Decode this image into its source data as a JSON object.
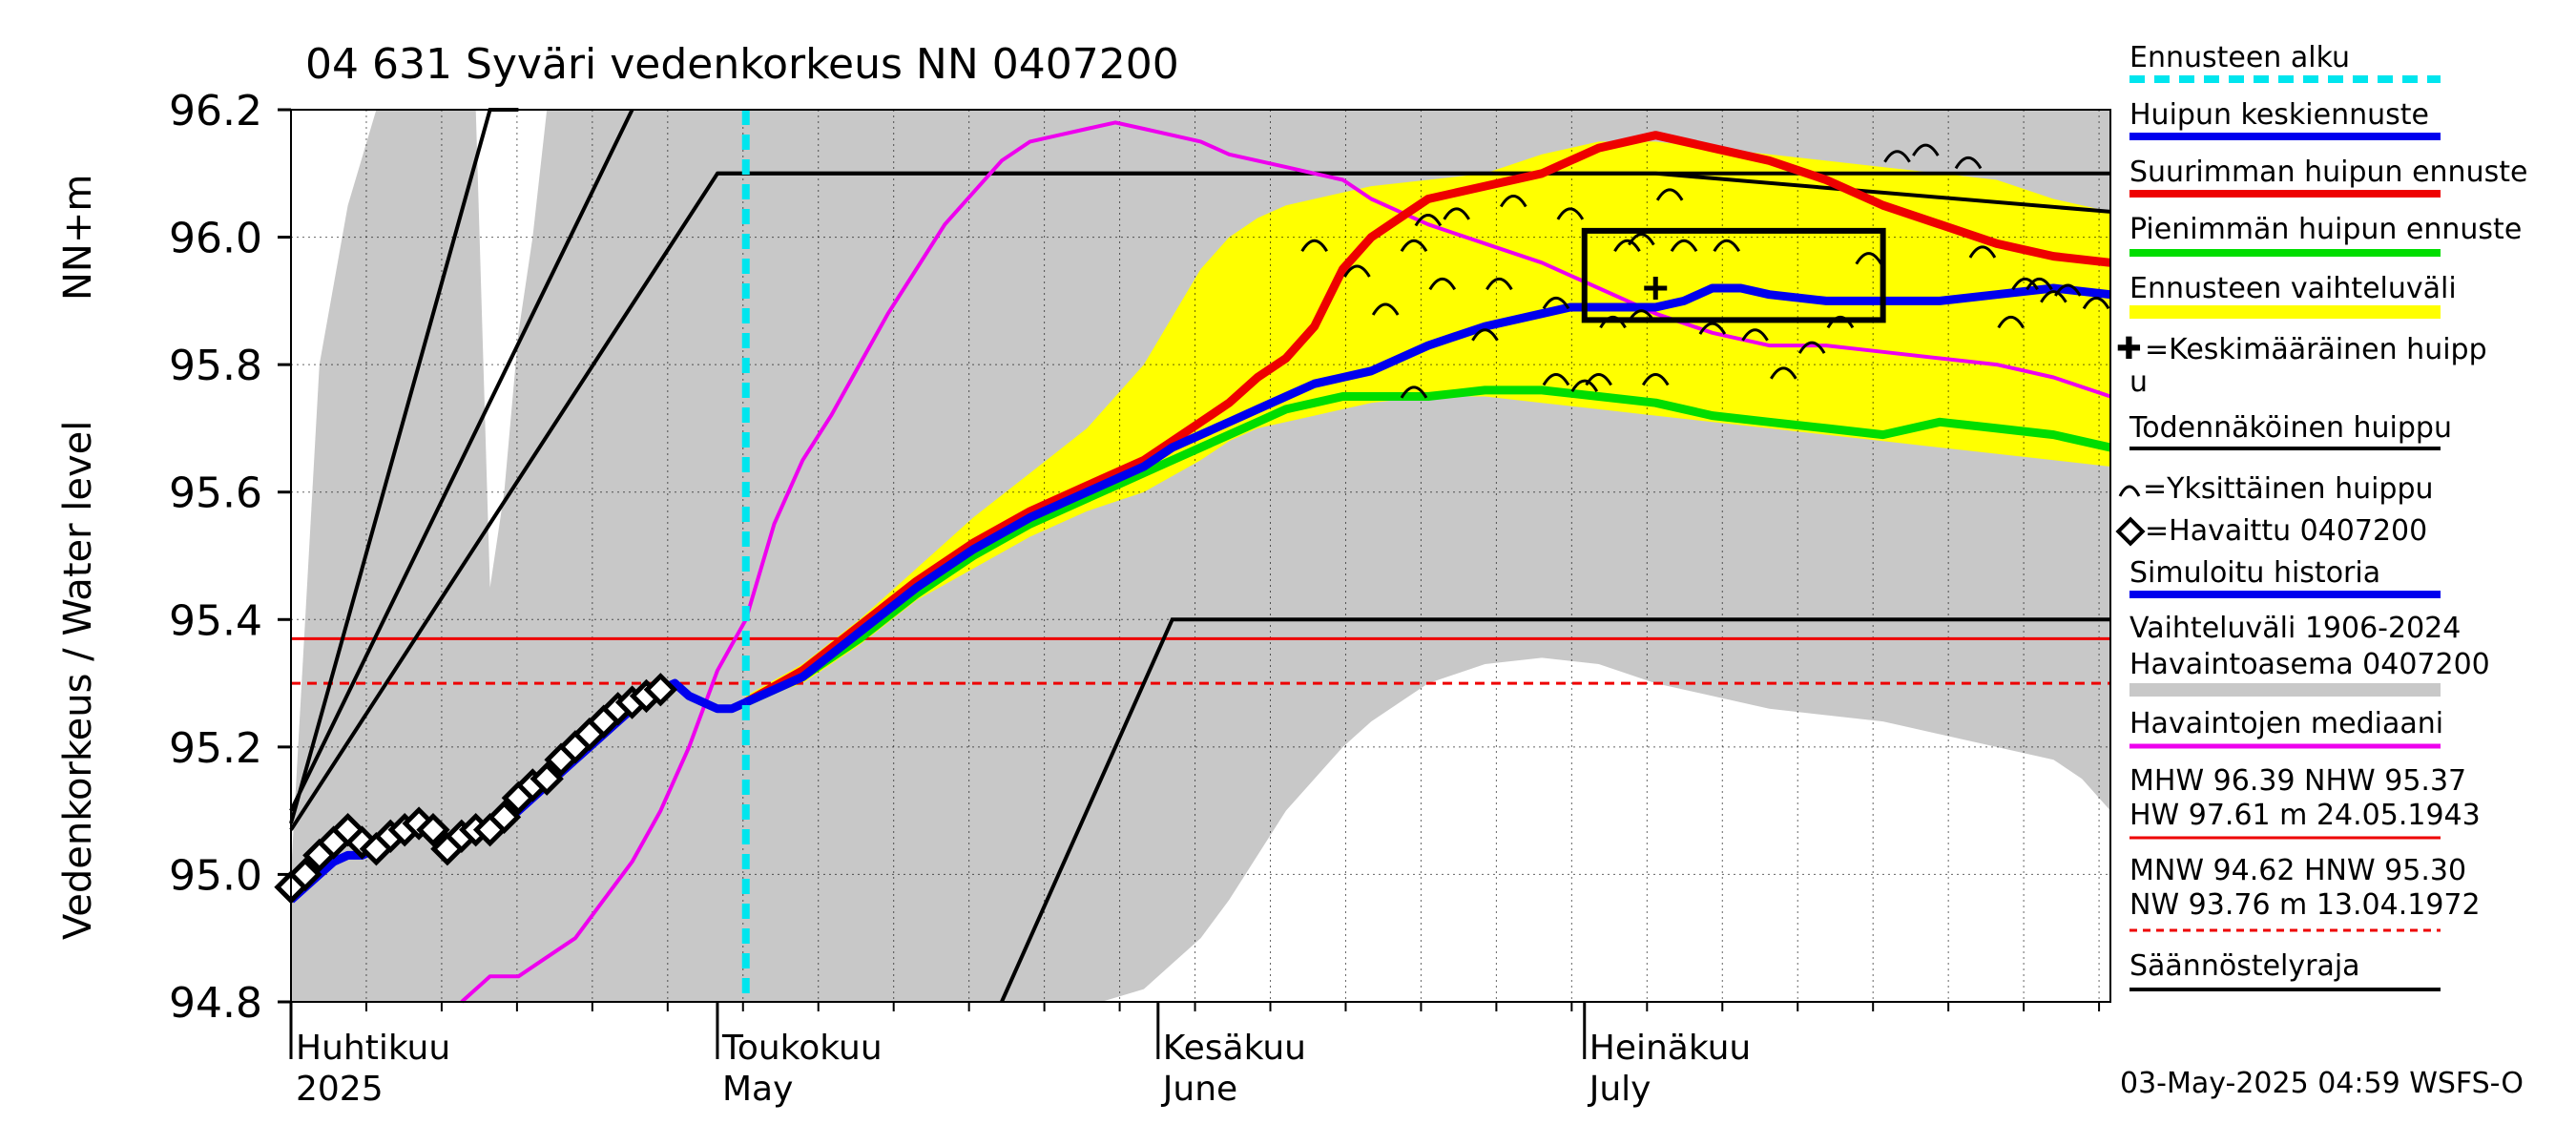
{
  "chart_data": {
    "type": "line",
    "title": "04 631 Syväri vedenkorkeus NN 0407200",
    "ylabel": "Vedenkorkeus / Water level",
    "yunit": "NN+m",
    "ylim": [
      94.8,
      96.2
    ],
    "xlim": [
      0,
      128
    ],
    "grid": true,
    "yticks": [
      94.8,
      95.0,
      95.2,
      95.4,
      95.6,
      95.8,
      96.0,
      96.2
    ],
    "ytick_labels": [
      "94.8",
      "95.0",
      "95.2",
      "95.4",
      "95.6",
      "95.8",
      "96.0",
      "96.2"
    ],
    "month_ticks": [
      {
        "day": 0,
        "label_fi": "Huhtikuu",
        "label_en": "2025"
      },
      {
        "day": 30,
        "label_fi": "Toukokuu",
        "label_en": "May"
      },
      {
        "day": 61,
        "label_fi": "Kesäkuu",
        "label_en": "June"
      },
      {
        "day": 91,
        "label_fi": "Heinäkuu",
        "label_en": "July"
      }
    ],
    "forecast_start_day": 32,
    "hlines": [
      {
        "name": "HNW",
        "value": 95.37,
        "style": "solid",
        "color": "#ee0000"
      },
      {
        "name": "HNW2",
        "value": 95.3,
        "style": "dashed",
        "color": "#ee0000"
      }
    ],
    "history_band": {
      "name": "Vaihteluväli 1906-2024 Havaintoasema 0407200",
      "x": [
        0,
        3,
        6,
        10,
        13,
        15,
        17,
        19,
        21,
        23,
        25,
        27,
        30,
        40,
        50,
        55,
        58,
        60,
        63,
        66,
        68,
        72,
        76,
        80,
        84,
        88,
        92,
        96,
        100,
        104,
        108,
        112,
        116,
        120,
        124,
        128
      ],
      "upper": [
        95.0,
        96.2,
        96.2,
        96.2,
        96.2,
        96.2,
        96.2,
        96.2,
        96.2,
        96.2,
        96.2,
        96.2,
        96.2,
        96.2,
        96.2,
        96.2,
        96.2,
        96.2,
        96.2,
        96.2,
        96.2,
        96.2,
        96.2,
        96.2,
        96.2,
        96.2,
        96.2,
        96.2,
        96.2,
        96.2,
        96.2,
        96.2,
        96.2,
        96.2,
        96.2,
        96.2
      ],
      "lower": [
        94.8,
        94.8,
        94.8,
        94.8,
        94.8,
        94.8,
        94.8,
        94.8,
        94.8,
        94.8,
        94.8,
        94.8,
        94.8,
        94.8,
        94.8,
        94.8,
        94.8,
        94.8,
        94.8,
        94.8,
        94.8,
        94.8,
        94.8,
        94.8,
        94.8,
        94.8,
        94.8,
        94.8,
        94.8,
        94.8,
        94.8,
        94.8,
        94.8,
        94.8,
        94.8,
        94.8
      ]
    },
    "history_white_upper": {
      "x": [
        0,
        2,
        4,
        6,
        8,
        10,
        12,
        13,
        14,
        15,
        16,
        17,
        18,
        20,
        22,
        24,
        26,
        28,
        30
      ],
      "y": [
        95.43,
        95.8,
        96.05,
        96.2,
        96.2,
        96.2,
        96.2,
        96.2,
        95.45,
        95.6,
        95.85,
        96.0,
        96.2,
        96.2,
        96.2,
        96.2,
        96.2,
        96.2,
        96.2
      ]
    },
    "history_white_lower": {
      "x": [
        57,
        60,
        62,
        64,
        66,
        68,
        70,
        72,
        74,
        76,
        80,
        84,
        88,
        92,
        96,
        100,
        104,
        108,
        112,
        116,
        120,
        124,
        126,
        128
      ],
      "y": [
        94.8,
        94.82,
        94.86,
        94.9,
        94.96,
        95.03,
        95.1,
        95.15,
        95.2,
        95.24,
        95.3,
        95.33,
        95.34,
        95.33,
        95.3,
        95.28,
        95.26,
        95.25,
        95.24,
        95.22,
        95.2,
        95.18,
        95.15,
        95.1
      ]
    },
    "forecast_band": {
      "name": "Ennusteen vaihteluväli",
      "x": [
        32,
        36,
        40,
        44,
        48,
        52,
        56,
        60,
        64,
        66,
        68,
        70,
        72,
        74,
        76,
        80,
        84,
        88,
        92,
        96,
        100,
        104,
        108,
        112,
        116,
        120,
        124,
        128
      ],
      "upper": [
        95.28,
        95.33,
        95.4,
        95.48,
        95.56,
        95.63,
        95.7,
        95.8,
        95.95,
        96.0,
        96.03,
        96.05,
        96.06,
        96.07,
        96.08,
        96.09,
        96.1,
        96.13,
        96.15,
        96.15,
        96.14,
        96.13,
        96.12,
        96.11,
        96.1,
        96.09,
        96.06,
        96.04
      ],
      "lower": [
        95.27,
        95.3,
        95.36,
        95.43,
        95.48,
        95.53,
        95.57,
        95.6,
        95.65,
        95.68,
        95.7,
        95.71,
        95.72,
        95.73,
        95.74,
        95.75,
        95.75,
        95.74,
        95.73,
        95.72,
        95.71,
        95.7,
        95.69,
        95.68,
        95.67,
        95.66,
        95.65,
        95.64
      ]
    },
    "series": [
      {
        "name": "Havaittu 0407200",
        "marker": "diamond",
        "color": "#000000",
        "x": [
          0,
          1,
          2,
          3,
          4,
          5,
          6,
          7,
          8,
          9,
          10,
          11,
          12,
          13,
          14,
          15,
          16,
          17,
          18,
          19,
          20,
          21,
          22,
          23,
          24,
          25,
          26
        ],
        "y": [
          94.98,
          95.0,
          95.03,
          95.05,
          95.07,
          95.05,
          95.04,
          95.06,
          95.07,
          95.08,
          95.07,
          95.04,
          95.06,
          95.07,
          95.07,
          95.09,
          95.12,
          95.14,
          95.15,
          95.18,
          95.2,
          95.22,
          95.24,
          95.26,
          95.27,
          95.28,
          95.29
        ]
      },
      {
        "name": "Simuloitu historia",
        "color": "#0000ee",
        "x": [
          0,
          1,
          2,
          3,
          4,
          5,
          6,
          7,
          8,
          9,
          10,
          11,
          12,
          13,
          14,
          15,
          16,
          17,
          18,
          19,
          20,
          21,
          22,
          23,
          24,
          25,
          26,
          27,
          28,
          29,
          30,
          31,
          32
        ],
        "y": [
          94.96,
          94.98,
          95.0,
          95.02,
          95.03,
          95.03,
          95.04,
          95.05,
          95.06,
          95.07,
          95.07,
          95.05,
          95.06,
          95.06,
          95.07,
          95.08,
          95.1,
          95.12,
          95.14,
          95.16,
          95.18,
          95.2,
          95.22,
          95.24,
          95.26,
          95.28,
          95.29,
          95.3,
          95.28,
          95.27,
          95.26,
          95.26,
          95.27
        ]
      },
      {
        "name": "Huipun keskiennuste",
        "color": "#0000ee",
        "x": [
          32,
          36,
          40,
          44,
          48,
          52,
          56,
          60,
          62,
          64,
          66,
          68,
          70,
          72,
          74,
          76,
          80,
          84,
          88,
          90,
          92,
          94,
          96,
          98,
          100,
          102,
          104,
          108,
          112,
          116,
          120,
          124,
          128
        ],
        "y": [
          95.27,
          95.31,
          95.38,
          95.45,
          95.51,
          95.56,
          95.6,
          95.64,
          95.67,
          95.69,
          95.71,
          95.73,
          95.75,
          95.77,
          95.78,
          95.79,
          95.83,
          95.86,
          95.88,
          95.89,
          95.89,
          95.89,
          95.89,
          95.9,
          95.92,
          95.92,
          95.91,
          95.9,
          95.9,
          95.9,
          95.91,
          95.92,
          95.91
        ]
      },
      {
        "name": "Suurimman huipun ennuste",
        "color": "#ee0000",
        "x": [
          32,
          36,
          40,
          44,
          48,
          52,
          56,
          60,
          62,
          64,
          66,
          68,
          70,
          72,
          74,
          76,
          78,
          80,
          84,
          88,
          92,
          96,
          100,
          104,
          108,
          112,
          116,
          120,
          124,
          128
        ],
        "y": [
          95.27,
          95.32,
          95.39,
          95.46,
          95.52,
          95.57,
          95.61,
          95.65,
          95.68,
          95.71,
          95.74,
          95.78,
          95.81,
          95.86,
          95.95,
          96.0,
          96.03,
          96.06,
          96.08,
          96.1,
          96.14,
          96.16,
          96.14,
          96.12,
          96.09,
          96.05,
          96.02,
          95.99,
          95.97,
          95.96
        ]
      },
      {
        "name": "Pienimmän huipun ennuste",
        "color": "#00dd00",
        "x": [
          32,
          36,
          40,
          44,
          48,
          52,
          56,
          60,
          62,
          64,
          66,
          68,
          70,
          72,
          74,
          76,
          80,
          84,
          88,
          92,
          96,
          100,
          104,
          108,
          112,
          116,
          120,
          124,
          128
        ],
        "y": [
          95.27,
          95.31,
          95.37,
          95.44,
          95.5,
          95.55,
          95.59,
          95.63,
          95.65,
          95.67,
          95.69,
          95.71,
          95.73,
          95.74,
          95.75,
          95.75,
          95.75,
          95.76,
          95.76,
          95.75,
          95.74,
          95.72,
          95.71,
          95.7,
          95.69,
          95.71,
          95.7,
          95.69,
          95.67
        ]
      },
      {
        "name": "Havaintojen mediaani",
        "color": "#ee00ee",
        "x": [
          12,
          14,
          16,
          18,
          20,
          22,
          24,
          26,
          28,
          30,
          32,
          34,
          36,
          38,
          40,
          42,
          44,
          46,
          48,
          50,
          52,
          54,
          56,
          58,
          60,
          62,
          64,
          66,
          68,
          70,
          72,
          74,
          76,
          78,
          80,
          84,
          88,
          92,
          96,
          100,
          104,
          108,
          112,
          116,
          120,
          124,
          128
        ],
        "y": [
          94.8,
          94.84,
          94.84,
          94.87,
          94.9,
          94.96,
          95.02,
          95.1,
          95.2,
          95.32,
          95.4,
          95.55,
          95.65,
          95.72,
          95.8,
          95.88,
          95.95,
          96.02,
          96.07,
          96.12,
          96.15,
          96.16,
          96.17,
          96.18,
          96.17,
          96.16,
          96.15,
          96.13,
          96.12,
          96.11,
          96.1,
          96.09,
          96.06,
          96.04,
          96.02,
          95.99,
          95.96,
          95.92,
          95.88,
          95.85,
          95.83,
          95.83,
          95.82,
          95.81,
          95.8,
          95.78,
          95.75
        ]
      },
      {
        "name": "Todennäköinen huippu",
        "color": "#000000",
        "x": [
          30,
          96,
          128
        ],
        "y": [
          96.1,
          96.1,
          96.04
        ]
      }
    ],
    "regulation_lines": [
      {
        "name": "Säännöstelyraja",
        "x": [
          0,
          30,
          128
        ],
        "y": [
          95.07,
          96.1,
          96.1
        ],
        "style": "black"
      },
      {
        "name": "Säännöstelyraja",
        "x": [
          50,
          62,
          128
        ],
        "y": [
          94.8,
          95.4,
          95.4
        ],
        "style": "black"
      },
      {
        "name": "Säännöstelyraja",
        "x": [
          0,
          14,
          16
        ],
        "y": [
          95.08,
          96.2,
          96.2
        ],
        "style": "black"
      },
      {
        "name": "Säännöstelyraja",
        "x": [
          0,
          24
        ],
        "y": [
          95.1,
          96.2
        ],
        "style": "black"
      }
    ],
    "peak_box": {
      "x0": 91,
      "x1": 112,
      "y0": 95.87,
      "y1": 96.01
    },
    "mean_peak_marker": {
      "x": 96,
      "y": 95.92
    },
    "individual_peaks": [
      {
        "x": 72,
        "y": 95.99
      },
      {
        "x": 75,
        "y": 95.95
      },
      {
        "x": 77,
        "y": 95.89
      },
      {
        "x": 79,
        "y": 95.99
      },
      {
        "x": 80,
        "y": 96.03
      },
      {
        "x": 81,
        "y": 95.93
      },
      {
        "x": 82,
        "y": 96.04
      },
      {
        "x": 84,
        "y": 95.85
      },
      {
        "x": 85,
        "y": 95.93
      },
      {
        "x": 86,
        "y": 96.06
      },
      {
        "x": 89,
        "y": 95.9
      },
      {
        "x": 90,
        "y": 96.04
      },
      {
        "x": 91,
        "y": 95.77
      },
      {
        "x": 93,
        "y": 95.87
      },
      {
        "x": 94,
        "y": 95.99
      },
      {
        "x": 95,
        "y": 95.88
      },
      {
        "x": 96,
        "y": 95.78
      },
      {
        "x": 97,
        "y": 96.07
      },
      {
        "x": 98,
        "y": 95.99
      },
      {
        "x": 100,
        "y": 95.86
      },
      {
        "x": 101,
        "y": 95.99
      },
      {
        "x": 103,
        "y": 95.85
      },
      {
        "x": 105,
        "y": 95.79
      },
      {
        "x": 107,
        "y": 95.83
      },
      {
        "x": 109,
        "y": 95.87
      },
      {
        "x": 111,
        "y": 95.97
      },
      {
        "x": 113,
        "y": 96.13
      },
      {
        "x": 115,
        "y": 96.14
      },
      {
        "x": 118,
        "y": 96.12
      },
      {
        "x": 119,
        "y": 95.98
      },
      {
        "x": 121,
        "y": 95.87
      },
      {
        "x": 123,
        "y": 95.93
      },
      {
        "x": 124,
        "y": 95.91
      },
      {
        "x": 125,
        "y": 95.92
      },
      {
        "x": 127,
        "y": 95.9
      },
      {
        "x": 79,
        "y": 95.76
      },
      {
        "x": 92,
        "y": 95.78
      },
      {
        "x": 89,
        "y": 95.78
      },
      {
        "x": 95,
        "y": 96.0
      },
      {
        "x": 122,
        "y": 95.93
      }
    ],
    "legend": [
      {
        "label": "Ennusteen alku",
        "kind": "dashed",
        "color": "#00e5ee"
      },
      {
        "label": "Huipun keskiennuste",
        "kind": "line",
        "color": "#0000ee"
      },
      {
        "label": "Suurimman huipun ennuste",
        "kind": "line",
        "color": "#ee0000"
      },
      {
        "label": "Pienimmän huipun ennuste",
        "kind": "line",
        "color": "#00dd00"
      },
      {
        "label": "Ennusteen vaihteluväli",
        "kind": "band",
        "color": "#ffff00"
      },
      {
        "label": "✚=Keskimääräinen huippu",
        "kind": "text"
      },
      {
        "label": "Todennäköinen huippu",
        "kind": "line",
        "color": "#000000"
      },
      {
        "label": "⌒=Yksittäinen huippu",
        "kind": "text"
      },
      {
        "label": "◇=Havaittu 0407200",
        "kind": "text"
      },
      {
        "label": "Simuloitu historia",
        "kind": "line",
        "color": "#0000ee"
      },
      {
        "label": "Vaihteluväli 1906-2024 Havaintoasema 0407200",
        "kind": "band",
        "color": "#c8c8c8"
      },
      {
        "label": "Havaintojen mediaani",
        "kind": "line",
        "color": "#ee00ee"
      },
      {
        "label": "MHW 96.39 NHW 95.37 HW 97.61 m 24.05.1943",
        "kind": "line",
        "color": "#ee0000"
      },
      {
        "label": "MNW 94.62 HNW 95.30 NW 93.76 m 13.04.1972",
        "kind": "dashed",
        "color": "#ee0000"
      },
      {
        "label": "Säännöstelyraja",
        "kind": "line",
        "color": "#000000"
      }
    ],
    "footer": "03-May-2025 04:59 WSFS-O"
  },
  "legend_text": {
    "l0": "Ennusteen alku",
    "l1": "Huipun keskiennuste",
    "l2": "Suurimman huipun ennuste",
    "l3": "Pienimmän huipun ennuste",
    "l4": "Ennusteen vaihteluväli",
    "l5a": "=Keskimääräinen huipp",
    "l5b": "u",
    "l6": "Todennäköinen huippu",
    "l7": "=Yksittäinen huippu",
    "l8": "=Havaittu 0407200",
    "l9": "Simuloitu historia",
    "l10a": "Vaihteluväli 1906-2024",
    "l10b": " Havaintoasema 0407200",
    "l11": "Havaintojen mediaani",
    "l12a": "MHW  96.39 NHW  95.37",
    "l12b": "HW  97.61 m 24.05.1943",
    "l13a": "MNW  94.62 HNW  95.30",
    "l13b": "NW  93.76 m 13.04.1972",
    "l14": "Säännöstelyraja"
  }
}
